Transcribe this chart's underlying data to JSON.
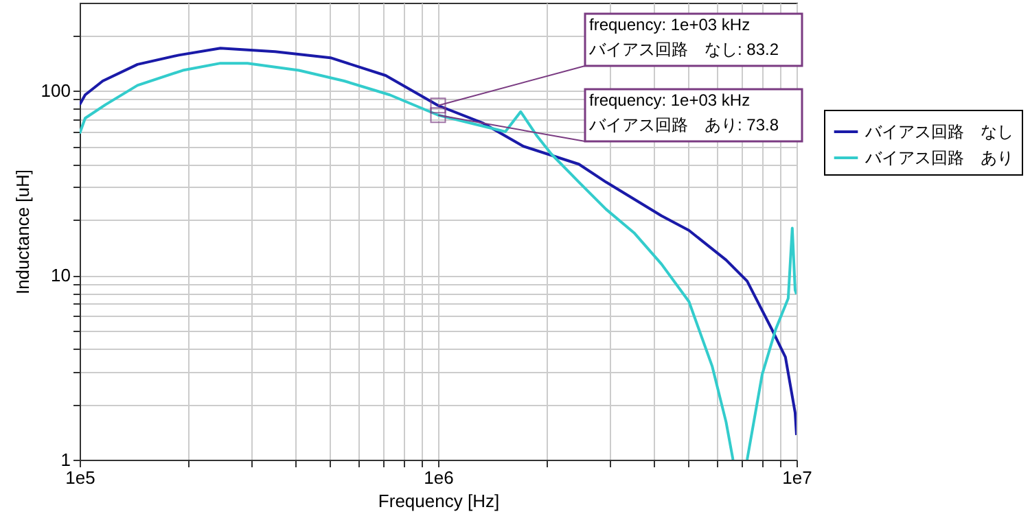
{
  "chart_data": {
    "type": "line",
    "xlabel": "Frequency [Hz]",
    "ylabel": "Inductance [uH]",
    "log": "xy",
    "grid": true,
    "legend": "right",
    "marker": "none",
    "line_style": "solid",
    "xlim": [
      100000,
      10000000
    ],
    "ylim": [
      1,
      300
    ],
    "xticks": [
      {
        "value": 100000,
        "label": "1e5"
      },
      {
        "value": 200000,
        "label": null
      },
      {
        "value": 300000,
        "label": null
      },
      {
        "value": 400000,
        "label": null
      },
      {
        "value": 500000,
        "label": null
      },
      {
        "value": 600000,
        "label": null
      },
      {
        "value": 700000,
        "label": null
      },
      {
        "value": 800000,
        "label": null
      },
      {
        "value": 900000,
        "label": null
      },
      {
        "value": 1000000,
        "label": "1e6"
      },
      {
        "value": 2000000,
        "label": null
      },
      {
        "value": 3000000,
        "label": null
      },
      {
        "value": 4000000,
        "label": null
      },
      {
        "value": 5000000,
        "label": null
      },
      {
        "value": 6000000,
        "label": null
      },
      {
        "value": 7000000,
        "label": null
      },
      {
        "value": 8000000,
        "label": null
      },
      {
        "value": 9000000,
        "label": null
      },
      {
        "value": 10000000,
        "label": "1e7"
      }
    ],
    "yticks": [
      1,
      {
        "value": 2,
        "label": null
      },
      {
        "value": 3,
        "label": null
      },
      {
        "value": 4,
        "label": null
      },
      {
        "value": 5,
        "label": null
      },
      {
        "value": 6,
        "label": null
      },
      {
        "value": 7,
        "label": null
      },
      {
        "value": 8,
        "label": null
      },
      {
        "value": 9,
        "label": null
      },
      10,
      {
        "value": 20,
        "label": null
      },
      {
        "value": 30,
        "label": null
      },
      {
        "value": 40,
        "label": null
      },
      {
        "value": 50,
        "label": null
      },
      {
        "value": 60,
        "label": null
      },
      {
        "value": 70,
        "label": null
      },
      {
        "value": 80,
        "label": null
      },
      {
        "value": 90,
        "label": null
      },
      100,
      {
        "value": 200,
        "label": null
      }
    ],
    "series": [
      {
        "name": "バイアス回路　なし",
        "color": "#1a1aa8",
        "x": [
          100000,
          103600,
          116000,
          145000,
          189000,
          247000,
          351000,
          501000,
          714000,
          1000000,
          1330000,
          1730000,
          2470000,
          2940000,
          4200000,
          5010000,
          6360000,
          7280000,
          8530000,
          9310000,
          9910000,
          10000000
        ],
        "values": [
          84,
          95,
          113,
          139,
          156,
          170,
          163,
          151,
          121,
          83.2,
          67,
          50,
          40,
          32,
          21,
          17.5,
          12.1,
          9.3,
          5.1,
          3.6,
          1.8,
          1.36
        ]
      },
      {
        "name": "バイアス回路　あり",
        "color": "#33cccc",
        "x": [
          100000,
          103600,
          118000,
          145000,
          194000,
          247000,
          294000,
          409000,
          547000,
          733000,
          1000000,
          1450000,
          1540000,
          1700000,
          1890000,
          2070000,
          2470000,
          2940000,
          3520000,
          4200000,
          5010000,
          5820000,
          6360000,
          6650000,
          6900000,
          7280000,
          8020000,
          8750000,
          9480000,
          9730000,
          9910000,
          10000000
        ],
        "values": [
          58.7,
          71,
          84,
          107,
          129,
          141,
          141,
          129,
          113,
          95,
          73.8,
          61.8,
          60,
          77,
          56.7,
          45.4,
          32,
          22.8,
          17,
          11.5,
          7.2,
          3.2,
          1.6,
          1.0,
          null,
          1.0,
          2.9,
          5.1,
          7.5,
          18,
          8.3,
          7.9
        ]
      }
    ],
    "annotations": [
      {
        "text": "frequency: 1e+03 kHz\nバイアス回路　なし: 83.2",
        "x": 1000000,
        "y": 83.2
      },
      {
        "text": "frequency: 1e+03 kHz\nバイアス回路　あり: 73.8",
        "x": 1000000,
        "y": 73.8
      }
    ]
  }
}
